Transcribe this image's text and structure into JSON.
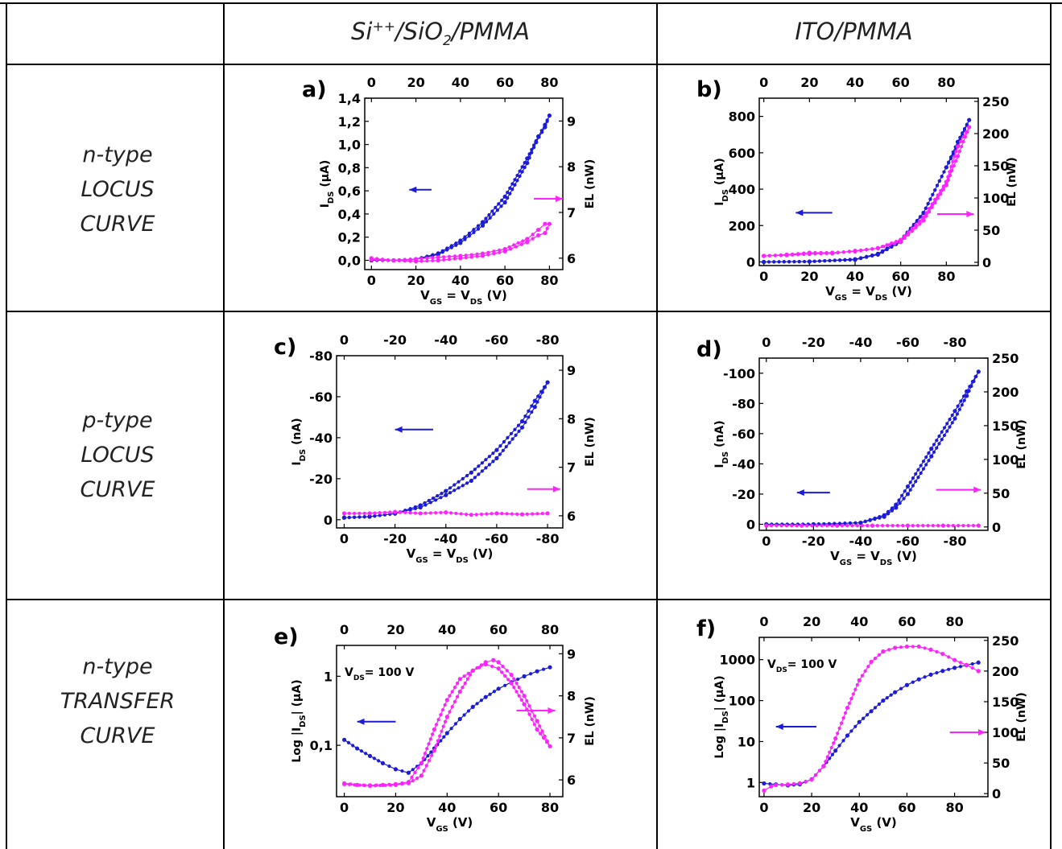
{
  "colors": {
    "current": "#1c1cd8",
    "el": "#ff22ff",
    "grid_line": "#000000"
  },
  "headers": {
    "col1": {
      "main": "Si",
      "sup1": "++",
      "mid": "/SiO",
      "sub": "2",
      "end": "/PMMA"
    },
    "col2": "ITO/PMMA"
  },
  "rows": [
    {
      "line1": "n-type",
      "line2": "LOCUS",
      "line3": "CURVE"
    },
    {
      "line1": "p-type",
      "line2": "LOCUS",
      "line3": "CURVE"
    },
    {
      "line1": "n-type",
      "line2": "TRANSFER",
      "line3": "CURVE"
    }
  ],
  "chart_data": [
    {
      "id": "a",
      "label": "a)",
      "type": "scatter",
      "xlabel": {
        "main": "V",
        "sub1": "GS",
        "mid": " = V",
        "sub2": "DS",
        "end": " (V)"
      },
      "ylabel_left": {
        "main": "I",
        "sub": "DS",
        "end": " (µA)"
      },
      "ylabel_right": "EL (nW)",
      "xlim": [
        -3,
        86
      ],
      "ylim_left": [
        -0.08,
        1.4
      ],
      "ylim_right": [
        5.75,
        9.5
      ],
      "xticks": [
        0,
        20,
        40,
        60,
        80
      ],
      "xtick_labels": [
        "0",
        "20",
        "40",
        "60",
        "80"
      ],
      "yticks_left": [
        0,
        0.2,
        0.4,
        0.6,
        0.8,
        1.0,
        1.2,
        1.4
      ],
      "yticks_left_labels": [
        "0,0",
        "0,2",
        "0,4",
        "0,6",
        "0,8",
        "1,0",
        "1,2",
        "1,4"
      ],
      "yticks_right": [
        6,
        7,
        8,
        9
      ],
      "yticks_right_labels": [
        "6",
        "7",
        "8",
        "9"
      ],
      "series": [
        {
          "axis": "left",
          "color": "current",
          "x": [
            0,
            10,
            20,
            30,
            40,
            50,
            60,
            70,
            75,
            78,
            80,
            78,
            74,
            70,
            60,
            50,
            40,
            30,
            20,
            10,
            0
          ],
          "y": [
            0,
            0,
            0.01,
            0.06,
            0.17,
            0.33,
            0.55,
            0.88,
            1.07,
            1.17,
            1.25,
            1.15,
            1.02,
            0.84,
            0.5,
            0.3,
            0.15,
            0.05,
            0.01,
            0,
            0
          ]
        },
        {
          "axis": "right",
          "color": "el",
          "x": [
            0,
            10,
            20,
            30,
            40,
            50,
            60,
            70,
            75,
            78,
            80,
            78,
            75,
            70,
            60,
            50,
            40,
            30,
            20,
            10,
            0
          ],
          "y": [
            6,
            5.95,
            5.98,
            6.02,
            6.05,
            6.1,
            6.2,
            6.42,
            6.62,
            6.75,
            6.75,
            6.55,
            6.5,
            6.35,
            6.15,
            6.05,
            6.0,
            5.95,
            5.93,
            5.95,
            5.97
          ]
        }
      ],
      "arrows": [
        {
          "dir": "left",
          "color": "current",
          "x1": 27,
          "y1": 0.61,
          "x2": 17,
          "y2": 0.61,
          "axis": "left"
        },
        {
          "dir": "right",
          "color": "el",
          "x1": 73,
          "y1": 7.3,
          "x2": 86,
          "y2": 7.3,
          "axis": "right"
        }
      ]
    },
    {
      "id": "b",
      "label": "b)",
      "type": "scatter",
      "xlabel": {
        "main": "V",
        "sub1": "GS",
        "mid": " = V",
        "sub2": "DS",
        "end": " (V)"
      },
      "ylabel_left": {
        "main": "I",
        "sub": "DS",
        "end": " (µA)"
      },
      "ylabel_right": "EL (nW)",
      "xlim": [
        -2,
        94
      ],
      "ylim_left": [
        -20,
        900
      ],
      "ylim_right": [
        -5,
        255
      ],
      "xticks": [
        0,
        20,
        40,
        60,
        80
      ],
      "xtick_labels": [
        "0",
        "20",
        "40",
        "60",
        "80"
      ],
      "yticks_left": [
        0,
        200,
        400,
        600,
        800
      ],
      "yticks_left_labels": [
        "0",
        "200",
        "400",
        "600",
        "800"
      ],
      "yticks_right": [
        0,
        50,
        100,
        150,
        200,
        250
      ],
      "yticks_right_labels": [
        "0",
        "50",
        "100",
        "150",
        "200",
        "250"
      ],
      "series": [
        {
          "axis": "left",
          "color": "current",
          "x": [
            0,
            20,
            40,
            50,
            60,
            70,
            80,
            85,
            90,
            85,
            80,
            70,
            60,
            50,
            40,
            20,
            0
          ],
          "y": [
            0,
            2,
            15,
            45,
            120,
            270,
            520,
            640,
            780,
            660,
            520,
            270,
            110,
            40,
            12,
            2,
            0
          ]
        },
        {
          "axis": "right",
          "color": "el",
          "x": [
            0,
            10,
            20,
            30,
            40,
            50,
            60,
            70,
            80,
            85,
            90,
            85,
            80,
            70,
            60,
            50,
            40,
            30,
            20,
            10,
            0
          ],
          "y": [
            10,
            12,
            15,
            15,
            17,
            22,
            32,
            65,
            120,
            165,
            210,
            180,
            125,
            70,
            35,
            22,
            18,
            14,
            13,
            11,
            10
          ]
        }
      ],
      "arrows": [
        {
          "dir": "left",
          "color": "current",
          "x1": 30,
          "y1": 270,
          "x2": 14,
          "y2": 270,
          "axis": "left"
        },
        {
          "dir": "right",
          "color": "el",
          "x1": 76,
          "y1": 75,
          "x2": 92,
          "y2": 75,
          "axis": "right"
        }
      ]
    },
    {
      "id": "c",
      "label": "c)",
      "type": "scatter",
      "xlabel": {
        "main": "V",
        "sub1": "GS",
        "mid": " = V",
        "sub2": "DS",
        "end": " (V)"
      },
      "ylabel_left": {
        "main": "I",
        "sub": "DS",
        "end": " (nA)"
      },
      "ylabel_right": "EL (nW)",
      "xlim": [
        3,
        -86
      ],
      "ylim_left": [
        4,
        -80
      ],
      "ylim_right": [
        5.75,
        9.3
      ],
      "xticks": [
        0,
        -20,
        -40,
        -60,
        -80
      ],
      "xtick_labels": [
        "0",
        "-20",
        "-40",
        "-60",
        "-80"
      ],
      "yticks_left": [
        0,
        -20,
        -40,
        -60,
        -80
      ],
      "yticks_left_labels": [
        "0",
        "-20",
        "-40",
        "-60",
        "-80"
      ],
      "yticks_right": [
        6,
        7,
        8,
        9
      ],
      "yticks_right_labels": [
        "6",
        "7",
        "8",
        "9"
      ],
      "series": [
        {
          "axis": "left",
          "color": "current",
          "x": [
            0,
            -10,
            -20,
            -30,
            -40,
            -50,
            -60,
            -70,
            -75,
            -80,
            -75,
            -70,
            -60,
            -50,
            -40,
            -30,
            -20,
            -10,
            0
          ],
          "y": [
            -1,
            -1.5,
            -3,
            -6,
            -12,
            -19,
            -30,
            -45,
            -55,
            -67,
            -58,
            -48,
            -34,
            -23,
            -14,
            -7,
            -3,
            -1.5,
            -1
          ]
        },
        {
          "axis": "right",
          "color": "el",
          "x": [
            0,
            -10,
            -20,
            -30,
            -40,
            -50,
            -60,
            -70,
            -80
          ],
          "y": [
            6.05,
            6.05,
            6.08,
            6.05,
            6.07,
            6.02,
            6.05,
            6.03,
            6.05
          ]
        }
      ],
      "arrows": [
        {
          "dir": "left",
          "color": "current",
          "x1": -35,
          "y1": -44,
          "x2": -20,
          "y2": -44,
          "axis": "left"
        },
        {
          "dir": "right",
          "color": "el",
          "x1": -72,
          "y1": 6.55,
          "x2": -85,
          "y2": 6.55,
          "axis": "right"
        }
      ]
    },
    {
      "id": "d",
      "label": "d)",
      "type": "scatter",
      "xlabel": {
        "main": "V",
        "sub1": "GS",
        "mid": " = V",
        "sub2": "DS",
        "end": " (V)"
      },
      "ylabel_left": {
        "main": "I",
        "sub": "DS",
        "end": " (nA)"
      },
      "ylabel_right": "EL (nW)",
      "xlim": [
        3,
        -94
      ],
      "ylim_left": [
        4,
        -110
      ],
      "ylim_right": [
        -5,
        250
      ],
      "xticks": [
        0,
        -20,
        -40,
        -60,
        -80
      ],
      "xtick_labels": [
        "0",
        "-20",
        "-40",
        "-60",
        "-80"
      ],
      "yticks_left": [
        0,
        -20,
        -40,
        -60,
        -80,
        -100
      ],
      "yticks_left_labels": [
        "0",
        "-20",
        "-40",
        "-60",
        "-80",
        "-100"
      ],
      "yticks_right": [
        0,
        50,
        100,
        150,
        200,
        250
      ],
      "yticks_right_labels": [
        "0",
        "50",
        "100",
        "150",
        "200",
        "250"
      ],
      "series": [
        {
          "axis": "left",
          "color": "current",
          "x": [
            0,
            -20,
            -40,
            -50,
            -55,
            -60,
            -70,
            -80,
            -85,
            -90,
            -85,
            -80,
            -70,
            -60,
            -55,
            -50,
            -40,
            -20,
            0
          ],
          "y": [
            0,
            0,
            -1,
            -5,
            -11,
            -20,
            -45,
            -70,
            -85,
            -101,
            -88,
            -75,
            -50,
            -25,
            -13,
            -6,
            -1,
            0,
            0
          ],
          "extend": false
        },
        {
          "axis": "right",
          "color": "el",
          "x": [
            0,
            -15,
            -30,
            -45,
            -60,
            -75,
            -90
          ],
          "y": [
            2,
            2,
            2,
            2,
            2,
            2,
            2
          ]
        }
      ],
      "arrows": [
        {
          "dir": "left",
          "color": "current",
          "x1": -27,
          "y1": -21,
          "x2": -13,
          "y2": -21,
          "axis": "left"
        },
        {
          "dir": "right",
          "color": "el",
          "x1": -72,
          "y1": 55,
          "x2": -91,
          "y2": 55,
          "axis": "right"
        }
      ]
    },
    {
      "id": "e",
      "label": "e)",
      "type": "scatter",
      "xlabel": {
        "main": "V",
        "sub1": "GS",
        "mid": " (V)",
        "sub2": "",
        "end": ""
      },
      "ylabel_left": {
        "main": "Log |I",
        "sub": "DS",
        "end": "| (µA)"
      },
      "ylabel_right": "EL (nW)",
      "annotation": {
        "main": "V",
        "sub": "DS",
        "end": "= 100 V"
      },
      "log_left": true,
      "xlim": [
        -3,
        85
      ],
      "ylim_left": [
        0.018,
        2.8
      ],
      "ylim_right": [
        5.6,
        9.2
      ],
      "xticks": [
        0,
        20,
        40,
        60,
        80
      ],
      "xtick_labels": [
        "0",
        "20",
        "40",
        "60",
        "80"
      ],
      "yticks_left": [
        0.1,
        1
      ],
      "yticks_left_labels": [
        "0,1",
        "1"
      ],
      "yticks_right": [
        6,
        7,
        8,
        9
      ],
      "yticks_right_labels": [
        "6",
        "7",
        "8",
        "9"
      ],
      "series": [
        {
          "axis": "left",
          "color": "current",
          "x": [
            0,
            5,
            10,
            15,
            20,
            25,
            30,
            35,
            40,
            45,
            50,
            55,
            60,
            65,
            70,
            75,
            80
          ],
          "y": [
            0.12,
            0.09,
            0.07,
            0.055,
            0.045,
            0.04,
            0.055,
            0.09,
            0.15,
            0.24,
            0.36,
            0.5,
            0.66,
            0.82,
            1.0,
            1.18,
            1.35
          ]
        },
        {
          "axis": "right",
          "color": "el",
          "x": [
            0,
            5,
            10,
            15,
            20,
            25,
            30,
            35,
            40,
            45,
            50,
            55,
            58,
            60,
            65,
            70,
            75,
            80,
            75,
            70,
            65,
            60,
            55,
            50,
            45,
            40,
            35,
            30,
            25,
            20,
            10,
            0
          ],
          "y": [
            5.92,
            5.88,
            5.87,
            5.88,
            5.9,
            5.95,
            6.4,
            7.2,
            7.9,
            8.4,
            8.6,
            8.8,
            8.85,
            8.8,
            8.5,
            8.0,
            7.4,
            6.8,
            7.2,
            7.8,
            8.3,
            8.65,
            8.75,
            8.6,
            8.1,
            7.5,
            6.7,
            6.1,
            5.92,
            5.88,
            5.86,
            5.9
          ]
        }
      ],
      "arrows": [
        {
          "dir": "left",
          "color": "current",
          "x1": 20,
          "y1": 0.22,
          "x2": 5,
          "y2": 0.22,
          "axis": "left"
        },
        {
          "dir": "right",
          "color": "el",
          "x1": 67,
          "y1": 7.65,
          "x2": 82,
          "y2": 7.65,
          "axis": "right"
        }
      ]
    },
    {
      "id": "f",
      "label": "f)",
      "type": "scatter",
      "xlabel": {
        "main": "V",
        "sub1": "GS",
        "mid": " (V)",
        "sub2": "",
        "end": ""
      },
      "ylabel_left": {
        "main": "Log |I",
        "sub": "DS",
        "end": "| (µA)"
      },
      "ylabel_right": "EL (nW)",
      "annotation": {
        "main": "V",
        "sub": "DS",
        "end": "= 100 V"
      },
      "log_left": true,
      "xlim": [
        -2,
        94
      ],
      "ylim_left": [
        0.45,
        3500
      ],
      "ylim_right": [
        -5,
        255
      ],
      "xticks": [
        0,
        20,
        40,
        60,
        80
      ],
      "xtick_labels": [
        "0",
        "20",
        "40",
        "60",
        "80"
      ],
      "yticks_left": [
        1,
        10,
        100,
        1000
      ],
      "yticks_left_labels": [
        "1",
        "10",
        "100",
        "1000"
      ],
      "yticks_right": [
        0,
        50,
        100,
        150,
        200,
        250
      ],
      "yticks_right_labels": [
        "0",
        "50",
        "100",
        "150",
        "200",
        "250"
      ],
      "series": [
        {
          "axis": "left",
          "color": "current",
          "x": [
            0,
            5,
            10,
            15,
            20,
            25,
            30,
            35,
            40,
            45,
            50,
            55,
            60,
            65,
            70,
            75,
            80,
            85,
            90
          ],
          "y": [
            0.95,
            0.9,
            0.85,
            0.9,
            1.2,
            2.5,
            6,
            14,
            30,
            55,
            100,
            160,
            240,
            330,
            430,
            530,
            630,
            730,
            850
          ]
        },
        {
          "axis": "right",
          "color": "el",
          "x": [
            0,
            3,
            5,
            10,
            15,
            20,
            25,
            30,
            35,
            40,
            45,
            50,
            55,
            60,
            65,
            70,
            75,
            80,
            85,
            90
          ],
          "y": [
            5,
            12,
            14,
            15,
            17,
            23,
            45,
            90,
            140,
            185,
            215,
            232,
            238,
            240,
            240,
            235,
            228,
            218,
            210,
            200
          ]
        }
      ],
      "arrows": [
        {
          "dir": "left",
          "color": "current",
          "x1": 22,
          "y1": 23,
          "x2": 5,
          "y2": 23,
          "axis": "left"
        },
        {
          "dir": "right",
          "color": "el",
          "x1": 78,
          "y1": 100,
          "x2": 93,
          "y2": 100,
          "axis": "right"
        }
      ]
    }
  ]
}
